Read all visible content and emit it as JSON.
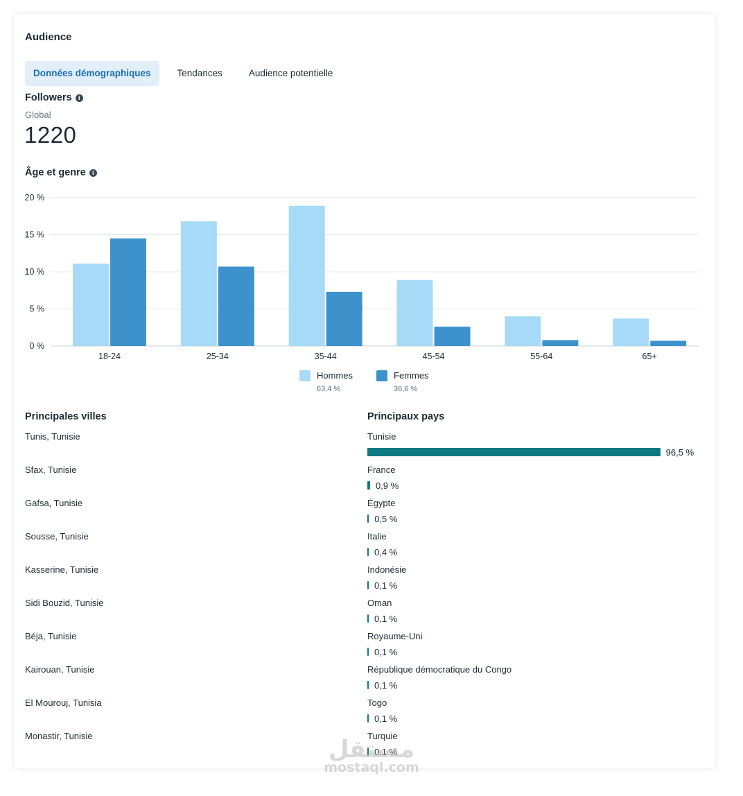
{
  "card": {
    "title": "Audience"
  },
  "tabs": [
    {
      "label": "Données démographiques",
      "active": true
    },
    {
      "label": "Tendances",
      "active": false
    },
    {
      "label": "Audience potentielle",
      "active": false
    }
  ],
  "followers": {
    "title": "Followers",
    "scope": "Global",
    "count": "1220"
  },
  "age_gender": {
    "title": "Âge et genre"
  },
  "chart_data": {
    "type": "bar",
    "categories": [
      "18-24",
      "25-34",
      "35-44",
      "45-54",
      "55-64",
      "65+"
    ],
    "series": [
      {
        "name": "Hommes",
        "values": [
          11.1,
          16.8,
          18.9,
          8.9,
          4.0,
          3.7
        ],
        "color": "#a6daf6",
        "share": "63,4 %"
      },
      {
        "name": "Femmes",
        "values": [
          14.5,
          10.7,
          7.3,
          2.6,
          0.8,
          0.7
        ],
        "color": "#3d92cc",
        "share": "36,6 %"
      }
    ],
    "yticks": [
      "0 %",
      "5 %",
      "10 %",
      "15 %",
      "20 %"
    ],
    "ylim": [
      0,
      20
    ],
    "grid": true,
    "legend": "bottom-center"
  },
  "cities": {
    "title": "Principales villes",
    "items": [
      "Tunis, Tunisie",
      "Sfax, Tunisie",
      "Gafsa, Tunisie",
      "Sousse, Tunisie",
      "Kasserine, Tunisie",
      "Sidi Bouzid, Tunisie",
      "Béja, Tunisie",
      "Kairouan, Tunisie",
      "El Mourouj, Tunisia",
      "Monastir, Tunisie"
    ]
  },
  "countries": {
    "title": "Principaux pays",
    "bar_color": "#0e7a80",
    "items": [
      {
        "name": "Tunisie",
        "pct": "96,5 %",
        "value": 96.5
      },
      {
        "name": "France",
        "pct": "0,9 %",
        "value": 0.9
      },
      {
        "name": "Égypte",
        "pct": "0,5 %",
        "value": 0.5
      },
      {
        "name": "Italie",
        "pct": "0,4 %",
        "value": 0.4
      },
      {
        "name": "Indonésie",
        "pct": "0,1 %",
        "value": 0.1
      },
      {
        "name": "Oman",
        "pct": "0,1 %",
        "value": 0.1
      },
      {
        "name": "Royaume-Uni",
        "pct": "0,1 %",
        "value": 0.1
      },
      {
        "name": "République démocratique du Congo",
        "pct": "0,1 %",
        "value": 0.1
      },
      {
        "name": "Togo",
        "pct": "0,1 %",
        "value": 0.1
      },
      {
        "name": "Turquie",
        "pct": "0,1 %",
        "value": 0.1
      }
    ]
  },
  "watermark": {
    "arabic": "مستقل",
    "latin": "mostaql.com"
  }
}
